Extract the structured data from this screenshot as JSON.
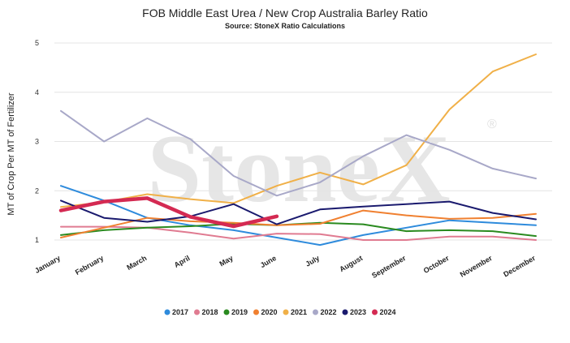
{
  "chart_data": {
    "type": "line",
    "title": "FOB Middle East Urea / New Crop Australia Barley Ratio",
    "subtitle": "Source: StoneX Ratio Calculations",
    "ylabel": "MT of Crop Per MT of Fertilizer",
    "xlabel": "",
    "watermark": "StoneX",
    "watermark_mark": "®",
    "categories": [
      "January",
      "February",
      "March",
      "April",
      "May",
      "June",
      "July",
      "August",
      "September",
      "October",
      "November",
      "December"
    ],
    "ylim": [
      1,
      5
    ],
    "yticks": [
      "1",
      "2",
      "3",
      "4",
      "5"
    ],
    "grid": true,
    "legend_position": "bottom",
    "series": [
      {
        "name": "2017",
        "color": "#2e8bdc",
        "values": [
          2.1,
          1.8,
          1.45,
          1.3,
          1.2,
          1.05,
          0.9,
          1.1,
          1.25,
          1.4,
          1.35,
          1.3
        ]
      },
      {
        "name": "2018",
        "color": "#e07b91",
        "values": [
          1.27,
          1.27,
          1.25,
          1.15,
          1.03,
          1.13,
          1.12,
          1.0,
          1.0,
          1.07,
          1.07,
          1.0
        ]
      },
      {
        "name": "2019",
        "color": "#2a8a1f",
        "values": [
          1.1,
          1.2,
          1.25,
          1.28,
          1.33,
          1.3,
          1.35,
          1.32,
          1.18,
          1.2,
          1.18,
          1.08
        ]
      },
      {
        "name": "2020",
        "color": "#f08030",
        "values": [
          1.05,
          1.25,
          1.45,
          1.38,
          1.35,
          1.3,
          1.33,
          1.6,
          1.5,
          1.43,
          1.45,
          1.53
        ]
      },
      {
        "name": "2021",
        "color": "#f0b048",
        "values": [
          1.67,
          1.77,
          1.93,
          1.83,
          1.75,
          2.1,
          2.37,
          2.13,
          2.52,
          3.65,
          4.42,
          4.77
        ]
      },
      {
        "name": "2022",
        "color": "#a8a8c8",
        "values": [
          3.62,
          3.0,
          3.47,
          3.05,
          2.3,
          1.9,
          2.17,
          2.7,
          3.13,
          2.83,
          2.45,
          2.25
        ]
      },
      {
        "name": "2023",
        "color": "#1a1a6e",
        "values": [
          1.8,
          1.45,
          1.37,
          1.48,
          1.73,
          1.32,
          1.62,
          1.68,
          1.73,
          1.78,
          1.55,
          1.42
        ]
      },
      {
        "name": "2024",
        "color": "#d42a52",
        "values": [
          1.6,
          1.78,
          1.85,
          1.47,
          1.28,
          1.48,
          null,
          null,
          null,
          null,
          null,
          null
        ]
      }
    ]
  }
}
